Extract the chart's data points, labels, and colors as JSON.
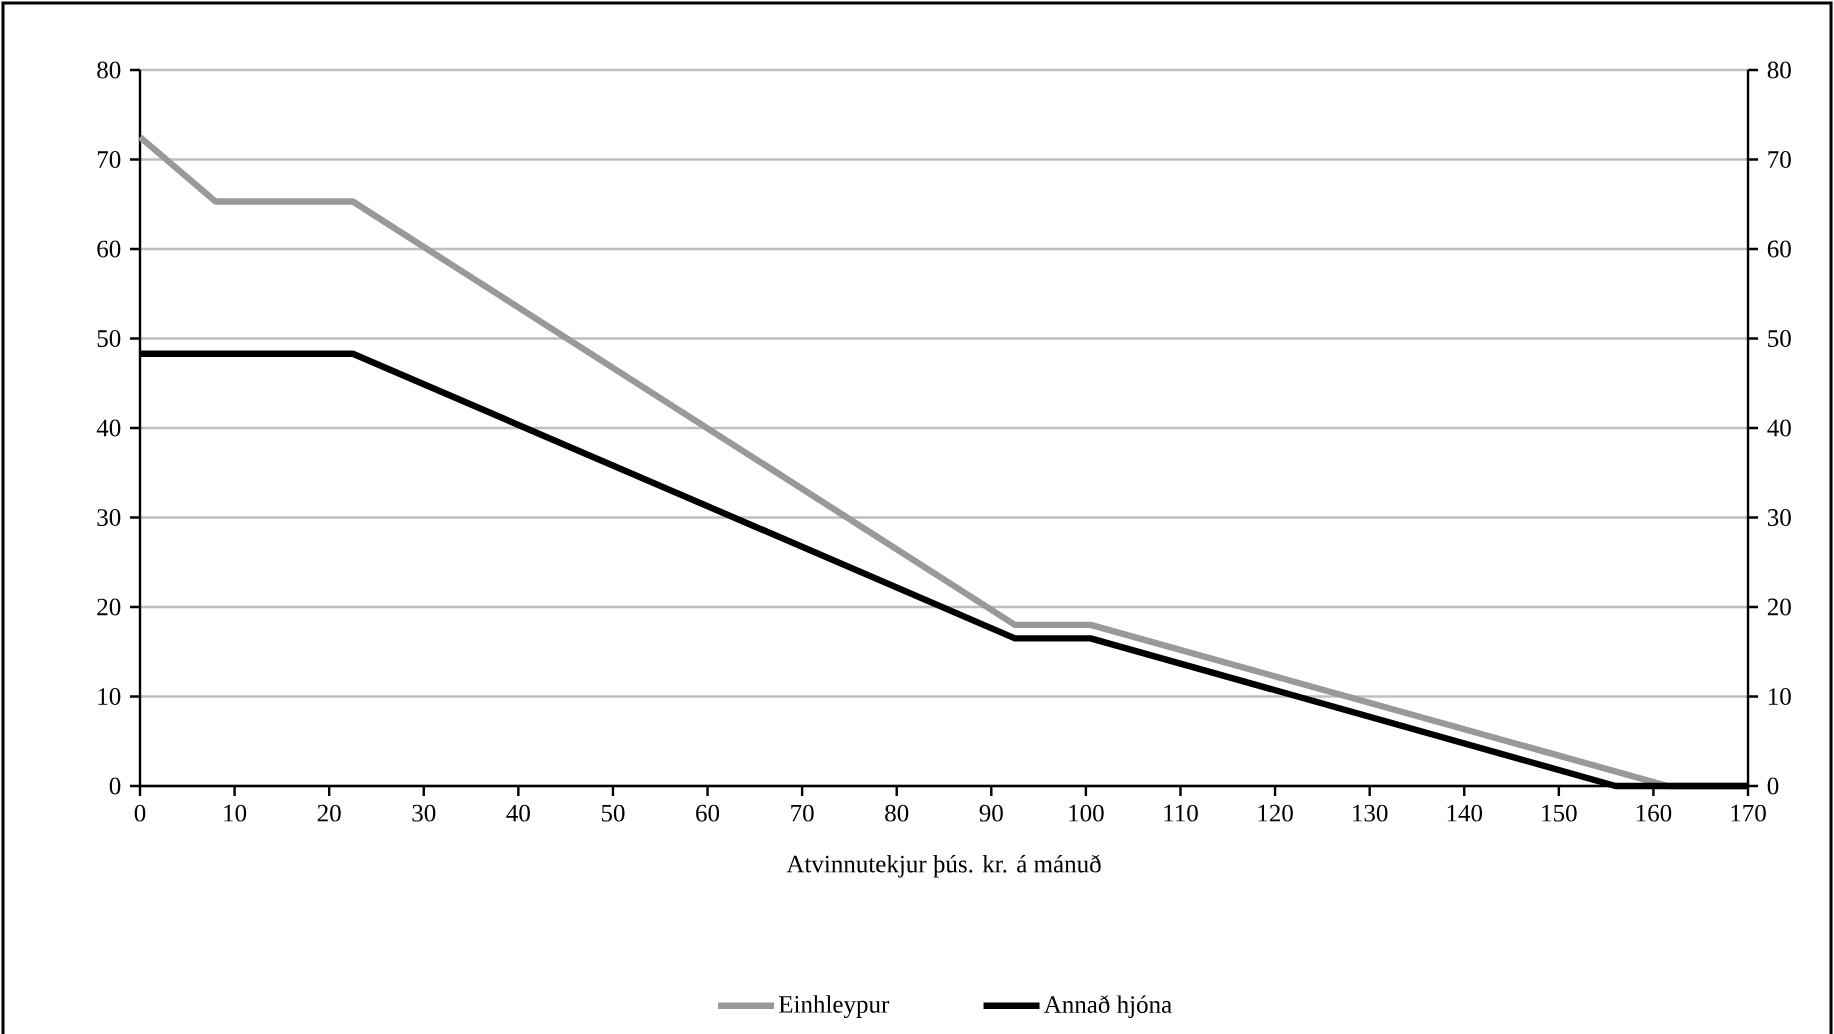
{
  "chart_data": {
    "type": "line",
    "xlabel": "Atvinnutekjur þús. kr. á mánuð",
    "series": [
      {
        "name": "Einhleypur",
        "color": "#999999",
        "x": [
          0,
          8,
          22.5,
          92.5,
          100.5,
          161.5,
          170
        ],
        "values": [
          72.5,
          65.3,
          65.3,
          18,
          18,
          0,
          0
        ]
      },
      {
        "name": "Annað hjóna",
        "color": "#000000",
        "x": [
          0,
          22.5,
          92.5,
          100.5,
          156,
          170
        ],
        "values": [
          48.3,
          48.3,
          16.5,
          16.5,
          0,
          0
        ]
      }
    ],
    "xlim": [
      0,
      170
    ],
    "xticks": [
      0,
      10,
      20,
      30,
      40,
      50,
      60,
      70,
      80,
      90,
      100,
      110,
      120,
      130,
      140,
      150,
      160,
      170
    ],
    "ylim": [
      0,
      80
    ],
    "yticks": [
      0,
      10,
      20,
      30,
      40,
      50,
      60,
      70,
      80
    ],
    "y2lim": [
      0,
      80
    ],
    "y2ticks": [
      0,
      10,
      20,
      30,
      40,
      50,
      60,
      70,
      80
    ],
    "grid": "y",
    "legend": "bottom",
    "marker": "none",
    "line_style": "solid"
  }
}
